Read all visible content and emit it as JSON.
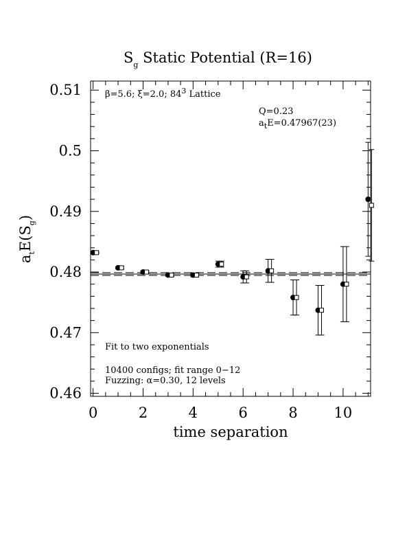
{
  "chart_data": {
    "type": "scatter",
    "title": "S",
    "title_sub": "g",
    "title_rest": " Static Potential (R=16)",
    "xlabel": "time separation",
    "ylabel_prefix": "a",
    "ylabel_prefix_sub": "t",
    "ylabel_mid": "E(S",
    "ylabel_mid_sub": "g",
    "ylabel_suffix": ")",
    "xlim": [
      -0.1,
      11.1
    ],
    "ylim": [
      0.4595,
      0.5115
    ],
    "xticks": [
      0,
      2,
      4,
      6,
      8,
      10
    ],
    "xtick_labels": [
      "0",
      "2",
      "4",
      "6",
      "8",
      "10"
    ],
    "yticks": [
      0.46,
      0.47,
      0.48,
      0.49,
      0.5,
      0.51
    ],
    "ytick_labels": [
      "0.46",
      "0.47",
      "0.48",
      "0.49",
      "0.5",
      "0.51"
    ],
    "fit": {
      "value": 0.47967,
      "error": 0.00023
    },
    "series": [
      {
        "marker": "filled-circle",
        "x": [
          0,
          1,
          2,
          3,
          4,
          5,
          6,
          7,
          8,
          9,
          10,
          11
        ],
        "y": [
          0.4832,
          0.4807,
          0.48,
          0.4795,
          0.4795,
          0.4813,
          0.4792,
          0.4802,
          0.4758,
          0.4737,
          0.478,
          0.492
        ],
        "err": [
          0.0001,
          0.0002,
          0.0002,
          0.0002,
          0.0003,
          0.0005,
          0.001,
          0.0019,
          0.0029,
          0.0041,
          0.0062,
          0.0094
        ]
      },
      {
        "marker": "open-square",
        "x": [
          0,
          1,
          2,
          3,
          4,
          5,
          6,
          7,
          8,
          9,
          10,
          11
        ],
        "y": [
          0.4832,
          0.4807,
          0.48,
          0.4795,
          0.4795,
          0.4813,
          0.4792,
          0.4802,
          0.4758,
          0.4737,
          0.478,
          0.491
        ],
        "err": [
          0.0001,
          0.0002,
          0.0002,
          0.0002,
          0.0003,
          0.0005,
          0.001,
          0.0019,
          0.0029,
          0.0041,
          0.0062,
          0.0092
        ]
      }
    ],
    "annotations": {
      "lattice_pre": "β=5.6; ξ=2.0; 84",
      "lattice_sup": "3",
      "lattice_post": " Lattice",
      "q_value": "Q=0.23",
      "energy_prefix": "a",
      "energy_sub": "t",
      "energy_rest": "E=0.47967(23)",
      "fit_label": "Fit to two exponentials",
      "configs": "10400 configs; fit range 0−12",
      "fuzzing": "Fuzzing: α=0.30, 12 levels"
    }
  }
}
